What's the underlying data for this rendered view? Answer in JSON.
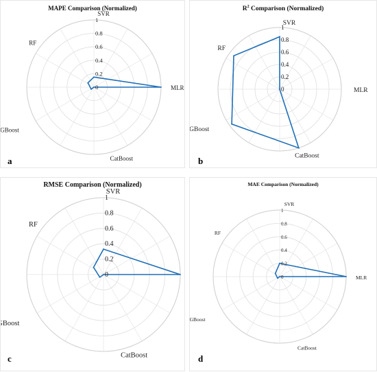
{
  "chart_data": [
    {
      "panel": "a",
      "type": "radar",
      "title": "MAPE Comparison (Normalized)",
      "axes": [
        "SVR",
        "MLR",
        "CatBoost",
        "XGBoost",
        "RF"
      ],
      "rlim": [
        0,
        1
      ],
      "rticks": [
        "0",
        "0.2",
        "0.4",
        "0.6",
        "0.8",
        "1"
      ],
      "series": [
        {
          "values": [
            0.15,
            1.0,
            0.0,
            0.05,
            0.11
          ]
        }
      ],
      "color": "#1f6fb8"
    },
    {
      "panel": "b",
      "type": "radar",
      "title": "R² Comparison (Normalized)",
      "axes": [
        "SVR",
        "MLR",
        "CatBoost",
        "XGBoost",
        "RF"
      ],
      "rlim": [
        0,
        1
      ],
      "rticks": [
        "0",
        "0.2",
        "0.4",
        "0.6",
        "0.8",
        "1"
      ],
      "series": [
        {
          "values": [
            0.85,
            0.0,
            1.0,
            0.96,
            0.92
          ]
        }
      ],
      "color": "#1f6fb8"
    },
    {
      "panel": "c",
      "type": "radar",
      "title": "RMSE Comparison (Normalized)",
      "axes": [
        "SVR",
        "MLR",
        "CatBoost",
        "XGBoost",
        "RF"
      ],
      "rlim": [
        0,
        1
      ],
      "rticks": [
        "0",
        "0.2",
        "0.4",
        "0.6",
        "0.8",
        "1"
      ],
      "series": [
        {
          "values": [
            0.33,
            1.0,
            0.0,
            0.06,
            0.16
          ]
        }
      ],
      "color": "#1f6fb8"
    },
    {
      "panel": "d",
      "type": "radar",
      "title": "MAE Comparison (Normalized)",
      "axes": [
        "SVR",
        "MLR",
        "CatBoost",
        "XGBoost",
        "RF"
      ],
      "rlim": [
        0,
        1
      ],
      "rticks": [
        "0",
        "0.2",
        "0.4",
        "0.6",
        "0.8",
        "1"
      ],
      "series": [
        {
          "values": [
            0.2,
            1.0,
            0.0,
            0.04,
            0.08
          ]
        }
      ],
      "color": "#1f6fb8"
    }
  ],
  "panels": {
    "a": {
      "letter": "a",
      "title": "MAPE Comparison (Normalized)"
    },
    "b": {
      "letter": "b",
      "title_base": "R",
      "title_sup": "2",
      "title_rest": " Comparison (Normalized)"
    },
    "c": {
      "letter": "c",
      "title": "RMSE Comparison (Normalized)"
    },
    "d": {
      "letter": "d",
      "title": "MAE Comparison (Normalized)"
    }
  }
}
